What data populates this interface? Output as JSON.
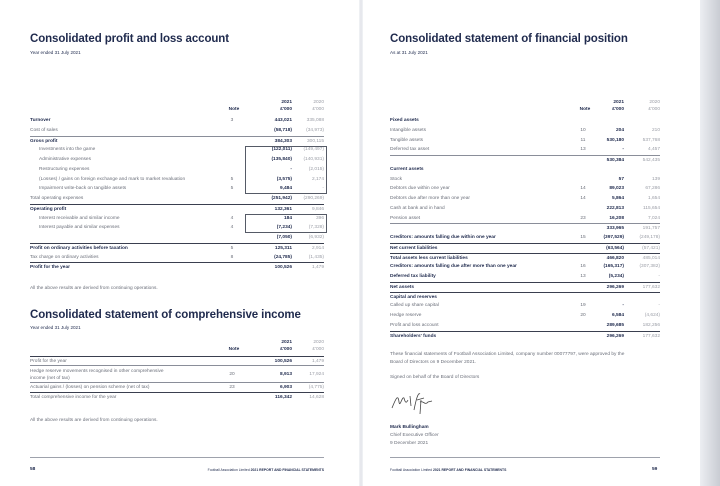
{
  "left": {
    "pl": {
      "title": "Consolidated profit and loss account",
      "subtitle": "Year ended 31 July 2021",
      "header": {
        "note": "Note",
        "y1": "2021",
        "u1": "£'000",
        "y2": "2020",
        "u2": "£'000"
      },
      "rows": [
        {
          "label": "Turnover",
          "note": "3",
          "v2021": "443,021",
          "v2020": "335,088",
          "type": "b"
        },
        {
          "label": "Cost of sales",
          "note": "",
          "v2021": "(58,718)",
          "v2020": "(34,973)",
          "type": ""
        },
        {
          "label": "Gross profit",
          "note": "",
          "v2021": "384,303",
          "v2020": "300,115",
          "type": "b t"
        },
        {
          "label": "Investments into the game",
          "note": "",
          "v2021": "(122,011)",
          "v2020": "(149,497)",
          "type": "i"
        },
        {
          "label": "Administrative expenses",
          "note": "",
          "v2021": "(135,840)",
          "v2020": "(140,931)",
          "type": "i"
        },
        {
          "label": "Restructuring expenses",
          "note": "",
          "v2021": "-",
          "v2020": "(2,015)",
          "type": "i"
        },
        {
          "label": "(Losses) / gains on foreign exchange and mark to market revaluation",
          "note": "5",
          "v2021": "(3,575)",
          "v2020": "2,174",
          "type": "i"
        },
        {
          "label": "Impairment write-back on tangible assets",
          "note": "5",
          "v2021": "9,484",
          "v2020": "-",
          "type": "i"
        },
        {
          "label": "Total operating expenses",
          "note": "",
          "v2021": "(251,942)",
          "v2020": "(290,269)",
          "type": ""
        },
        {
          "label": "Operating profit",
          "note": "",
          "v2021": "132,361",
          "v2020": "9,846",
          "type": "b tt"
        },
        {
          "label": "Interest receivable and similar income",
          "note": "4",
          "v2021": "184",
          "v2020": "396",
          "type": "i"
        },
        {
          "label": "Interest payable and similar expenses",
          "note": "4",
          "v2021": "(7,234)",
          "v2020": "(7,328)",
          "type": "i"
        },
        {
          "label": "",
          "note": "",
          "v2021": "(7,050)",
          "v2020": "(6,932)",
          "type": ""
        },
        {
          "label": "Profit on ordinary activities before taxation",
          "note": "5",
          "v2021": "125,311",
          "v2020": "2,914",
          "type": "b tt"
        },
        {
          "label": "Tax charge on ordinary activities",
          "note": "8",
          "v2021": "(24,785)",
          "v2020": "(1,435)",
          "type": ""
        },
        {
          "label": "Profit for the year",
          "note": "",
          "v2021": "100,526",
          "v2020": "1,479",
          "type": "b tt"
        }
      ],
      "footnote": "All the above results are derived from continuing operations."
    },
    "ci": {
      "title": "Consolidated statement of comprehensive income",
      "subtitle": "Year ended 31 July 2021",
      "header": {
        "note": "Note",
        "y1": "2021",
        "u1": "£'000",
        "y2": "2020",
        "u2": "£'000"
      },
      "rows": [
        {
          "label": "Profit for the year",
          "note": "",
          "v2021": "100,526",
          "v2020": "1,479",
          "type": "tt"
        },
        {
          "label": "Hedge reserve movements recognised in other comprehensive",
          "label2": "income (net of tax)",
          "note": "20",
          "v2021": "8,913",
          "v2020": "17,924",
          "type": "t"
        },
        {
          "label": "Actuarial gains / (losses) on pension scheme (net of tax)",
          "note": "23",
          "v2021": "6,903",
          "v2020": "(4,775)",
          "type": "t"
        },
        {
          "label": "Total comprehensive income for the year",
          "note": "",
          "v2021": "116,342",
          "v2020": "14,628",
          "type": "tt"
        }
      ],
      "footnote": "All the above results are derived from continuing operations."
    },
    "page_number": "58",
    "footer_a": "Football Association Limited",
    "footer_b": "2021 REPORT AND FINANCIAL STATEMENTS"
  },
  "right": {
    "fp": {
      "title": "Consolidated statement of financial position",
      "subtitle": "As at 31 July 2021",
      "header": {
        "note": "Note",
        "y1": "2021",
        "u1": "£'000",
        "y2": "2020",
        "u2": "£'000"
      },
      "rows": [
        {
          "label": "Fixed assets",
          "note": "",
          "v2021": "",
          "v2020": "",
          "type": "b"
        },
        {
          "label": "Intangible assets",
          "note": "10",
          "v2021": "204",
          "v2020": "210",
          "type": ""
        },
        {
          "label": "Tangible assets",
          "note": "11",
          "v2021": "530,180",
          "v2020": "537,768",
          "type": ""
        },
        {
          "label": "Deferred tax asset",
          "note": "13",
          "v2021": "-",
          "v2020": "4,457",
          "type": ""
        },
        {
          "label": "",
          "note": "",
          "v2021": "530,384",
          "v2020": "542,435",
          "type": "t"
        },
        {
          "label": "Current assets",
          "note": "",
          "v2021": "",
          "v2020": "",
          "type": "b"
        },
        {
          "label": "Stock",
          "note": "",
          "v2021": "57",
          "v2020": "139",
          "type": ""
        },
        {
          "label": "Debtors due within one year",
          "note": "14",
          "v2021": "89,023",
          "v2020": "67,286",
          "type": ""
        },
        {
          "label": "Debtors due after more than one year",
          "note": "14",
          "v2021": "5,864",
          "v2020": "1,654",
          "type": ""
        },
        {
          "label": "Cash at bank and in hand",
          "note": "",
          "v2021": "222,813",
          "v2020": "115,654",
          "type": ""
        },
        {
          "label": "Pension asset",
          "note": "23",
          "v2021": "16,208",
          "v2020": "7,024",
          "type": ""
        },
        {
          "label": "",
          "note": "",
          "v2021": "333,965",
          "v2020": "191,757",
          "type": "t"
        },
        {
          "label": "Creditors: amounts falling due within one year",
          "note": "15",
          "v2021": "(397,529)",
          "v2020": "(249,178)",
          "type": "b"
        },
        {
          "label": "Net current liabilities",
          "note": "",
          "v2021": "(63,564)",
          "v2020": "(57,421)",
          "type": "b tt"
        },
        {
          "label": "Total assets less current liabilities",
          "note": "",
          "v2021": "466,820",
          "v2020": "485,014",
          "type": "b tt"
        },
        {
          "label": "Creditors: amounts falling due after more than one year",
          "note": "16",
          "v2021": "(165,317)",
          "v2020": "(307,382)",
          "type": "b"
        },
        {
          "label": "Deferred tax liability",
          "note": "13",
          "v2021": "(5,234)",
          "v2020": "-",
          "type": "b"
        },
        {
          "label": "Net assets",
          "note": "",
          "v2021": "296,269",
          "v2020": "177,632",
          "type": "b tt"
        },
        {
          "label": "Capital and reserves",
          "note": "",
          "v2021": "",
          "v2020": "",
          "type": "b tt"
        },
        {
          "label": "Called up share capital",
          "note": "19",
          "v2021": "-",
          "v2020": "-",
          "type": ""
        },
        {
          "label": "Hedge reserve",
          "note": "20",
          "v2021": "6,584",
          "v2020": "(4,624)",
          "type": ""
        },
        {
          "label": "Profit and loss account",
          "note": "",
          "v2021": "289,685",
          "v2020": "182,256",
          "type": ""
        },
        {
          "label": "Shareholders' funds",
          "note": "",
          "v2021": "296,269",
          "v2020": "177,632",
          "type": "b tt"
        }
      ]
    },
    "approval_1": "These financial statements of Football Association Limited, company number 00077797, were approved by the",
    "approval_2": "Board of Directors on 9 December 2021.",
    "signed": "Signed on behalf of the Board of Directors",
    "signature_text": "Mark Bullingham",
    "signatory_name": "Mark Bullingham",
    "signatory_role": "Chief Executive Officer",
    "signatory_date": "9 December 2021",
    "page_number": "59",
    "footer_a": "Football Association Limited",
    "footer_b": "2021 REPORT AND FINANCIAL STATEMENTS"
  }
}
